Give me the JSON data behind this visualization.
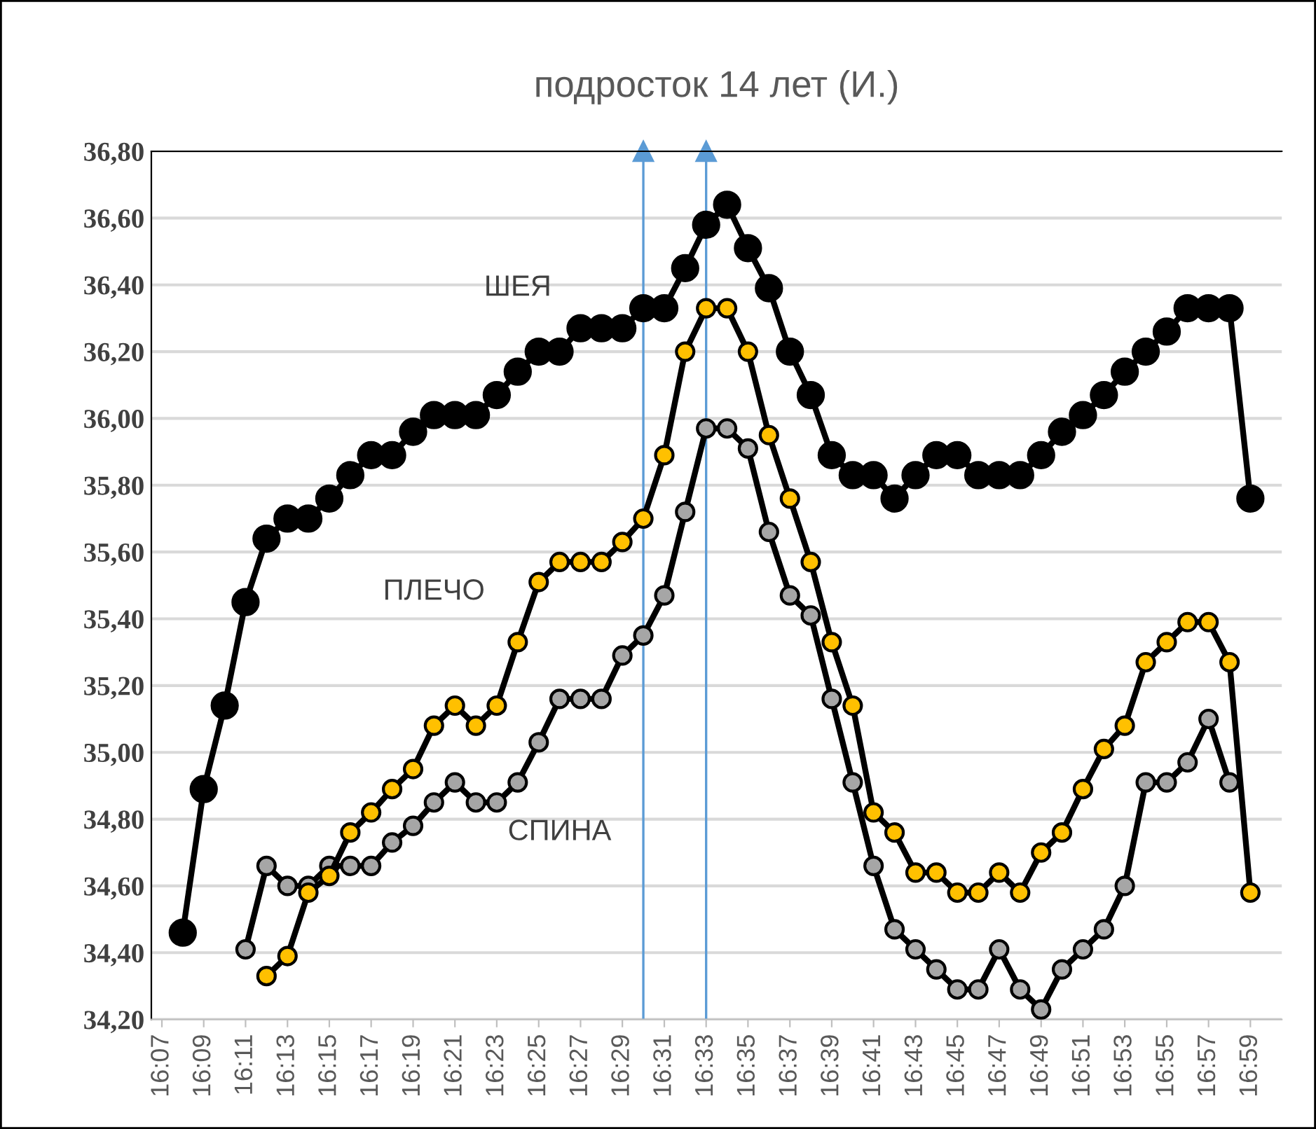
{
  "chart_data": {
    "type": "line",
    "title": "подросток 14 лет (И.)",
    "x": [
      16.1333,
      16.15,
      16.1667,
      16.1833,
      16.2,
      16.2167,
      16.2333,
      16.25,
      16.2667,
      16.2833,
      16.3,
      16.3167,
      16.3333,
      16.35,
      16.3667,
      16.3833,
      16.4,
      16.4167,
      16.4333,
      16.45,
      16.4667,
      16.4833,
      16.5,
      16.5167,
      16.5333,
      16.55,
      16.5667,
      16.5833,
      16.6,
      16.6167,
      16.6333,
      16.65,
      16.6667,
      16.6833,
      16.7,
      16.7167,
      16.7333,
      16.75,
      16.7667,
      16.7833,
      16.8,
      16.8167,
      16.8333,
      16.85,
      16.8667,
      16.8833,
      16.9,
      16.9167,
      16.9333,
      16.95,
      16.9667,
      16.9833
    ],
    "series": [
      {
        "name": "ШЕЯ",
        "color": "#000000",
        "values": [
          34.46,
          34.89,
          35.14,
          35.45,
          35.64,
          35.7,
          35.7,
          35.76,
          35.83,
          35.89,
          35.89,
          35.96,
          36.01,
          36.01,
          36.01,
          36.07,
          36.14,
          36.2,
          36.2,
          36.27,
          36.27,
          36.27,
          36.33,
          36.33,
          36.45,
          36.58,
          36.64,
          36.51,
          36.39,
          36.2,
          36.07,
          35.89,
          35.83,
          35.83,
          35.76,
          35.83,
          35.89,
          35.89,
          35.83,
          35.83,
          35.83,
          35.89,
          35.96,
          36.01,
          36.07,
          36.14,
          36.2,
          36.26,
          36.33,
          36.33,
          36.33,
          35.76
        ]
      },
      {
        "name": "ПЛЕЧО",
        "color": "#ffc000",
        "values": [
          null,
          null,
          null,
          null,
          34.33,
          34.39,
          34.58,
          34.63,
          34.76,
          34.82,
          34.89,
          34.95,
          35.08,
          35.14,
          35.08,
          35.14,
          35.33,
          35.51,
          35.57,
          35.57,
          35.57,
          35.63,
          35.7,
          35.89,
          36.2,
          36.33,
          36.33,
          36.2,
          35.95,
          35.76,
          35.57,
          35.33,
          35.14,
          34.82,
          34.76,
          34.64,
          34.64,
          34.58,
          34.58,
          34.64,
          34.58,
          34.7,
          34.76,
          34.89,
          35.01,
          35.08,
          35.27,
          35.33,
          35.39,
          35.39,
          35.27,
          34.58
        ]
      },
      {
        "name": "СПИНА",
        "color": "#a6a6a6",
        "values": [
          null,
          null,
          null,
          34.41,
          34.66,
          34.6,
          34.6,
          34.66,
          34.66,
          34.66,
          34.73,
          34.78,
          34.85,
          34.91,
          34.85,
          34.85,
          34.91,
          35.03,
          35.16,
          35.16,
          35.16,
          35.29,
          35.35,
          35.47,
          35.72,
          35.97,
          35.97,
          35.91,
          35.66,
          35.47,
          35.41,
          35.16,
          34.91,
          34.66,
          34.47,
          34.41,
          34.35,
          34.29,
          34.29,
          34.41,
          34.29,
          34.23,
          34.35,
          34.41,
          34.47,
          34.6,
          34.91,
          34.91,
          34.97,
          35.1,
          34.91,
          null
        ]
      }
    ],
    "xlim": [
      16.1083,
      17.0083
    ],
    "xticks": [
      {
        "value": 16.1167,
        "label": "16:07"
      },
      {
        "value": 16.15,
        "label": "16:09"
      },
      {
        "value": 16.1833,
        "label": "16:11"
      },
      {
        "value": 16.2167,
        "label": "16:13"
      },
      {
        "value": 16.25,
        "label": "16:15"
      },
      {
        "value": 16.2833,
        "label": "16:17"
      },
      {
        "value": 16.3167,
        "label": "16:19"
      },
      {
        "value": 16.35,
        "label": "16:21"
      },
      {
        "value": 16.3833,
        "label": "16:23"
      },
      {
        "value": 16.4167,
        "label": "16:25"
      },
      {
        "value": 16.45,
        "label": "16:27"
      },
      {
        "value": 16.4833,
        "label": "16:29"
      },
      {
        "value": 16.5167,
        "label": "16:31"
      },
      {
        "value": 16.55,
        "label": "16:33"
      },
      {
        "value": 16.5833,
        "label": "16:35"
      },
      {
        "value": 16.6167,
        "label": "16:37"
      },
      {
        "value": 16.65,
        "label": "16:39"
      },
      {
        "value": 16.6833,
        "label": "16:41"
      },
      {
        "value": 16.7167,
        "label": "16:43"
      },
      {
        "value": 16.75,
        "label": "16:45"
      },
      {
        "value": 16.7833,
        "label": "16:47"
      },
      {
        "value": 16.8167,
        "label": "16:49"
      },
      {
        "value": 16.85,
        "label": "16:51"
      },
      {
        "value": 16.8833,
        "label": "16:53"
      },
      {
        "value": 16.9167,
        "label": "16:55"
      },
      {
        "value": 16.95,
        "label": "16:57"
      },
      {
        "value": 16.9833,
        "label": "16:59"
      }
    ],
    "ylim": [
      34.2,
      36.8
    ],
    "yticks": [
      {
        "value": 34.2,
        "label": "34,20"
      },
      {
        "value": 34.4,
        "label": "34,40"
      },
      {
        "value": 34.6,
        "label": "34,60"
      },
      {
        "value": 34.8,
        "label": "34,80"
      },
      {
        "value": 35.0,
        "label": "35,00"
      },
      {
        "value": 35.2,
        "label": "35,20"
      },
      {
        "value": 35.4,
        "label": "35,40"
      },
      {
        "value": 35.6,
        "label": "35,60"
      },
      {
        "value": 35.8,
        "label": "35,80"
      },
      {
        "value": 36.0,
        "label": "36,00"
      },
      {
        "value": 36.2,
        "label": "36,20"
      },
      {
        "value": 36.4,
        "label": "36,40"
      },
      {
        "value": 36.6,
        "label": "36,60"
      },
      {
        "value": 36.8,
        "label": "36,80"
      }
    ],
    "ref_lines": [
      {
        "axis": "x",
        "value": 16.5,
        "color": "#5b9bd5"
      },
      {
        "axis": "x",
        "value": 16.55,
        "color": "#5b9bd5"
      }
    ],
    "grid": "y",
    "marker": "circle",
    "line_style": "solid",
    "legend": false
  }
}
